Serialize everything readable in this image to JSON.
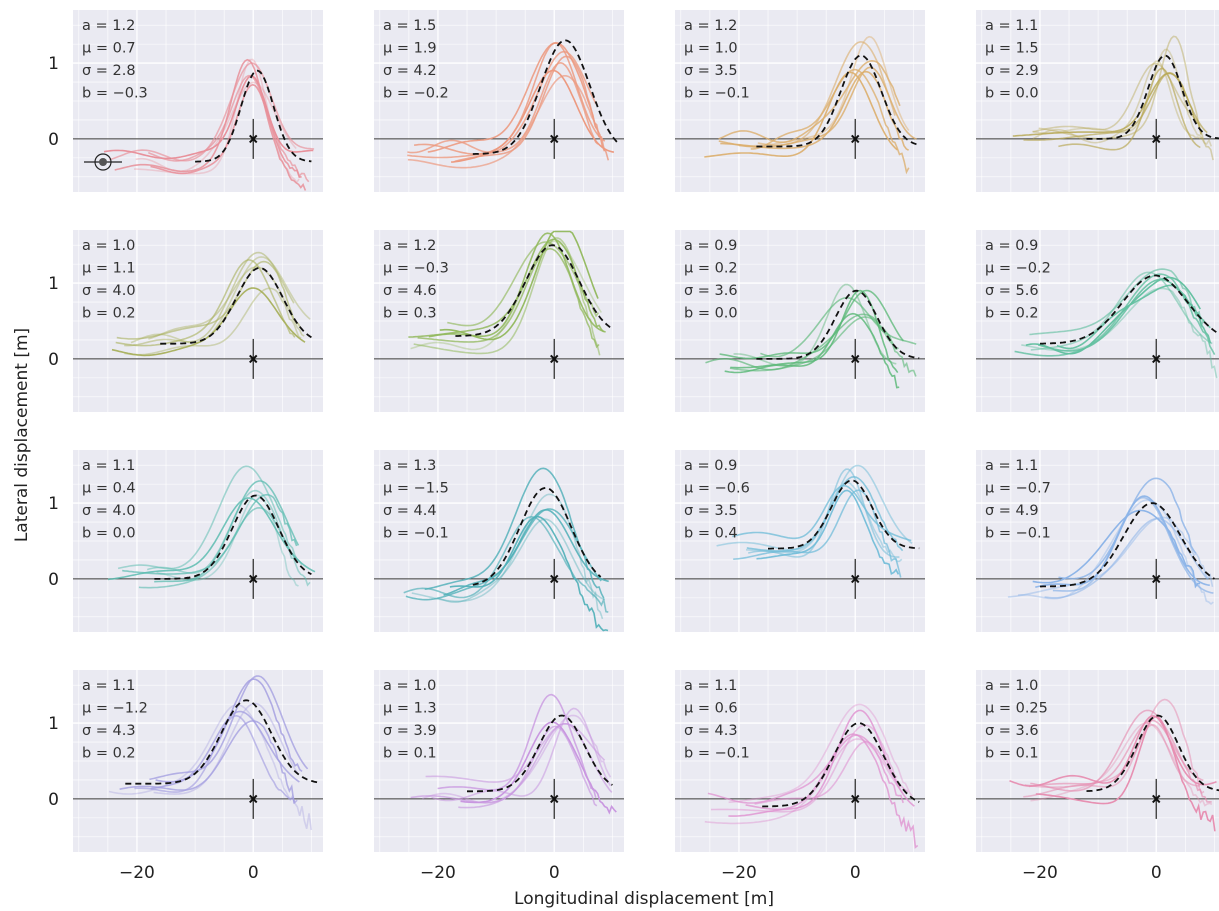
{
  "chart_data": {
    "type": "line",
    "grid": true,
    "layout": {
      "rows": 4,
      "cols": 4
    },
    "xlabel": "Longitudinal displacement [m]",
    "ylabel": "Lateral displacement [m]",
    "xlim": [
      -31,
      12
    ],
    "ylim": [
      -0.7,
      1.7
    ],
    "xticks": [
      -20,
      0
    ],
    "yticks": [
      0,
      1
    ],
    "tick_labels": {
      "x": [
        "−20",
        "0"
      ],
      "y": [
        "0",
        "1"
      ]
    },
    "model": "gaussian",
    "marker": {
      "x": 0,
      "y": 0
    },
    "panels": [
      {
        "params": {
          "a": "1.2",
          "mu": "0.7",
          "sigma": "2.8",
          "b": "−0.3"
        },
        "a": 1.2,
        "mu": 0.7,
        "sigma": 2.8,
        "b": -0.3,
        "fit_range": [
          -10,
          10
        ],
        "color": "#e8909a",
        "seed": 1,
        "ego_icon": true
      },
      {
        "params": {
          "a": "1.5",
          "mu": "1.9",
          "sigma": "4.2",
          "b": "−0.2"
        },
        "a": 1.5,
        "mu": 1.9,
        "sigma": 4.2,
        "b": -0.2,
        "fit_range": [
          -14,
          11
        ],
        "color": "#ec9a80",
        "seed": 2
      },
      {
        "params": {
          "a": "1.2",
          "mu": "1.0",
          "sigma": "3.5",
          "b": "−0.1"
        },
        "a": 1.2,
        "mu": 1.0,
        "sigma": 3.5,
        "b": -0.1,
        "fit_range": [
          -17,
          11
        ],
        "color": "#dcae6c",
        "seed": 3
      },
      {
        "params": {
          "a": "1.1",
          "mu": "1.5",
          "sigma": "2.9",
          "b": "0.0"
        },
        "a": 1.1,
        "mu": 1.5,
        "sigma": 2.9,
        "b": 0.0,
        "fit_range": [
          -12,
          11
        ],
        "color": "#b8a855",
        "seed": 4
      },
      {
        "params": {
          "a": "1.0",
          "mu": "1.1",
          "sigma": "4.0",
          "b": "0.2"
        },
        "a": 1.0,
        "mu": 1.1,
        "sigma": 4.0,
        "b": 0.2,
        "fit_range": [
          -16,
          10
        ],
        "color": "#a8b05c",
        "seed": 5
      },
      {
        "params": {
          "a": "1.2",
          "mu": "−0.3",
          "sigma": "4.6",
          "b": "0.3"
        },
        "a": 1.2,
        "mu": -0.3,
        "sigma": 4.6,
        "b": 0.3,
        "fit_range": [
          -17,
          10
        ],
        "color": "#90b85a",
        "seed": 6
      },
      {
        "params": {
          "a": "0.9",
          "mu": "0.2",
          "sigma": "3.6",
          "b": "0.0"
        },
        "a": 0.9,
        "mu": 0.2,
        "sigma": 3.6,
        "b": 0.0,
        "fit_range": [
          -17,
          11
        ],
        "color": "#5cb878",
        "seed": 7
      },
      {
        "params": {
          "a": "0.9",
          "mu": "−0.2",
          "sigma": "5.6",
          "b": "0.2"
        },
        "a": 0.9,
        "mu": -0.2,
        "sigma": 5.6,
        "b": 0.2,
        "fit_range": [
          -20,
          11
        ],
        "color": "#62c0a0",
        "seed": 8
      },
      {
        "params": {
          "a": "1.1",
          "mu": "0.4",
          "sigma": "4.0",
          "b": "0.0"
        },
        "a": 1.1,
        "mu": 0.4,
        "sigma": 4.0,
        "b": 0.0,
        "fit_range": [
          -17,
          10
        ],
        "color": "#5cbcb0",
        "seed": 9
      },
      {
        "params": {
          "a": "1.3",
          "mu": "−1.5",
          "sigma": "4.4",
          "b": "−0.1"
        },
        "a": 1.3,
        "mu": -1.5,
        "sigma": 4.4,
        "b": -0.1,
        "fit_range": [
          -14,
          8
        ],
        "color": "#50b0b8",
        "seed": 10
      },
      {
        "params": {
          "a": "0.9",
          "mu": "−0.6",
          "sigma": "3.5",
          "b": "0.4"
        },
        "a": 0.9,
        "mu": -0.6,
        "sigma": 3.5,
        "b": 0.4,
        "fit_range": [
          -15,
          11
        ],
        "color": "#70bcd8",
        "seed": 11
      },
      {
        "params": {
          "a": "1.1",
          "mu": "−0.7",
          "sigma": "4.9",
          "b": "−0.1"
        },
        "a": 1.1,
        "mu": -0.7,
        "sigma": 4.9,
        "b": -0.1,
        "fit_range": [
          -20,
          10
        ],
        "color": "#8cb4e8",
        "seed": 12
      },
      {
        "params": {
          "a": "1.1",
          "mu": "−1.2",
          "sigma": "4.3",
          "b": "0.2"
        },
        "a": 1.1,
        "mu": -1.2,
        "sigma": 4.3,
        "b": 0.2,
        "fit_range": [
          -22,
          11
        ],
        "color": "#a49ee0",
        "seed": 13
      },
      {
        "params": {
          "a": "1.0",
          "mu": "1.3",
          "sigma": "3.9",
          "b": "0.1"
        },
        "a": 1.0,
        "mu": 1.3,
        "sigma": 3.9,
        "b": 0.1,
        "fit_range": [
          -15,
          10
        ],
        "color": "#c896e0",
        "seed": 14
      },
      {
        "params": {
          "a": "1.1",
          "mu": "0.6",
          "sigma": "4.3",
          "b": "−0.1"
        },
        "a": 1.1,
        "mu": 0.6,
        "sigma": 4.3,
        "b": -0.1,
        "fit_range": [
          -16,
          11
        ],
        "color": "#e090d0",
        "seed": 15
      },
      {
        "params": {
          "a": "1.0",
          "mu": "0.25",
          "sigma": "3.6",
          "b": "0.1"
        },
        "a": 1.0,
        "mu": 0.25,
        "sigma": 3.6,
        "b": 0.1,
        "fit_range": [
          -12,
          11
        ],
        "color": "#e68cb0",
        "seed": 16
      }
    ]
  }
}
